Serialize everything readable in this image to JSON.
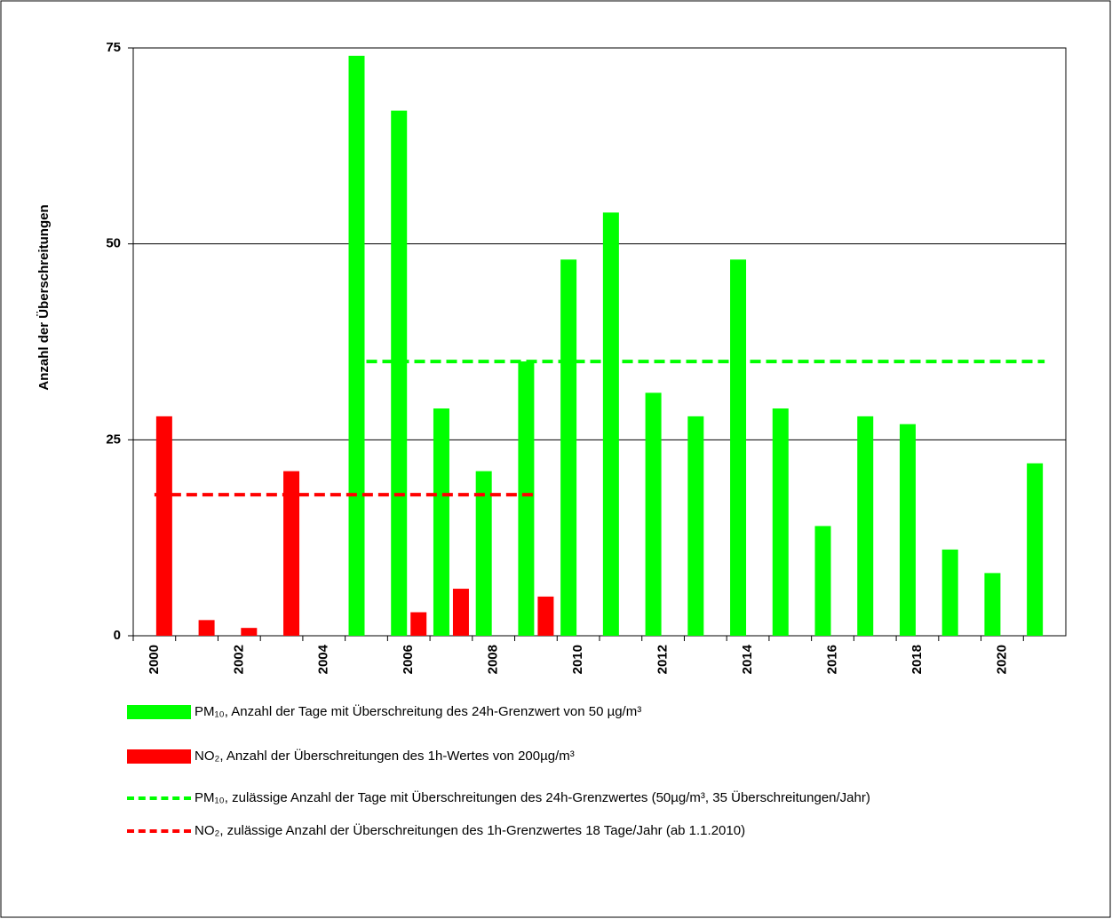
{
  "chart_data": {
    "type": "bar",
    "ylabel": "Anzahl der Überschreitungen",
    "categories": [
      "2000",
      null,
      "2002",
      null,
      "2004",
      null,
      "2006",
      null,
      "2008",
      null,
      "2010",
      null,
      "2012",
      null,
      "2014",
      null,
      "2016",
      null,
      "2018",
      null,
      "2020",
      null
    ],
    "ylim": [
      0,
      75
    ],
    "yticks": [
      0,
      25,
      50,
      75
    ],
    "grid": true,
    "series": [
      {
        "name": "PM₁₀,  Anzahl der Tage mit Überschreitung des 24h-Grenzwert von 50 µg/m³",
        "type": "bar",
        "color": "#00ff00",
        "values": [
          null,
          null,
          null,
          null,
          null,
          74,
          67,
          29,
          21,
          35,
          48,
          54,
          31,
          28,
          48,
          29,
          14,
          28,
          27,
          11,
          8,
          22
        ]
      },
      {
        "name": "NO₂,  Anzahl der Überschreitungen des 1h-Wertes von 200µg/m³",
        "type": "bar",
        "color": "#ff0000",
        "values": [
          28,
          2,
          1,
          21,
          null,
          null,
          3,
          6,
          null,
          5,
          null,
          null,
          null,
          null,
          null,
          null,
          null,
          null,
          null,
          null,
          null,
          null
        ]
      },
      {
        "name": "PM₁₀,  zulässige Anzahl der Tage mit Überschreitungen des 24h-Grenzwertes (50µg/m³, 35 Überschreitungen/Jahr)",
        "type": "line",
        "dashed": true,
        "color": "#00ff00",
        "values": [
          null,
          null,
          null,
          null,
          null,
          35,
          35,
          35,
          35,
          35,
          35,
          35,
          35,
          35,
          35,
          35,
          35,
          35,
          35,
          35,
          35,
          35
        ]
      },
      {
        "name": "NO₂,  zulässige Anzahl der Überschreitungen des 1h-Grenzwertes 18 Tage/Jahr (ab 1.1.2010)",
        "type": "line",
        "dashed": true,
        "color": "#ff0000",
        "values": [
          18,
          18,
          18,
          18,
          18,
          18,
          18,
          18,
          18,
          18,
          null,
          null,
          null,
          null,
          null,
          null,
          null,
          null,
          null,
          null,
          null,
          null
        ]
      }
    ]
  }
}
